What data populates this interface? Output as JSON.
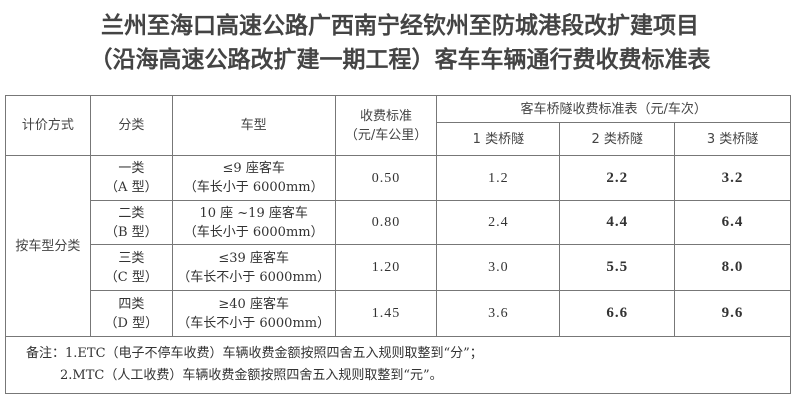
{
  "title": {
    "line1": "兰州至海口高速公路广西南宁经钦州至防城港段改扩建项目",
    "line2": "（沿海高速公路改扩建一期工程）客车车辆通行费收费标准表"
  },
  "table": {
    "headers": {
      "pricing_method": "计价方式",
      "category": "分类",
      "vehicle_type": "车型",
      "rate_line1": "收费标准",
      "rate_line2": "（元/车公里）",
      "tunnel_group": "客车桥隧收费标准表（元/车次）",
      "tunnel_1": "1 类桥隧",
      "tunnel_2": "2 类桥隧",
      "tunnel_3": "3 类桥隧"
    },
    "pricing_method_value": "按车型分类",
    "rows": [
      {
        "class": "一类",
        "class_type": "（A 型）",
        "vehicle": "≤9 座客车",
        "length": "（车长小于 6000mm）",
        "rate": "0.50",
        "t1": "1.2",
        "t2": "2.2",
        "t3": "3.2"
      },
      {
        "class": "二类",
        "class_type": "（B 型）",
        "vehicle": "10 座 ~19 座客车",
        "length": "（车长小于 6000mm）",
        "rate": "0.80",
        "t1": "2.4",
        "t2": "4.4",
        "t3": "6.4"
      },
      {
        "class": "三类",
        "class_type": "（C 型）",
        "vehicle": "≤39 座客车",
        "length": "（车长不小于 6000mm）",
        "rate": "1.20",
        "t1": "3.0",
        "t2": "5.5",
        "t3": "8.0"
      },
      {
        "class": "四类",
        "class_type": "（D 型）",
        "vehicle": "≥40 座客车",
        "length": "（车长不小于 6000mm）",
        "rate": "1.45",
        "t1": "3.6",
        "t2": "6.6",
        "t3": "9.6"
      }
    ],
    "notes": [
      "备注：1.ETC（电子不停车收费）车辆收费金额按照四舍五入规则取整到“分”；",
      "2.MTC（人工收费）车辆收费金额按照四舍五入规则取整到“元”。"
    ]
  }
}
